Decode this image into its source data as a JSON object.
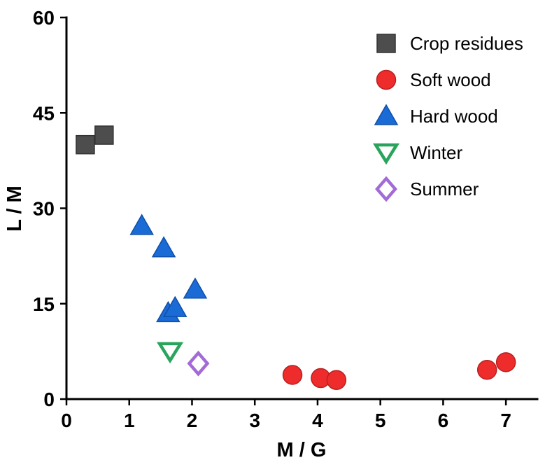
{
  "chart_data": {
    "type": "scatter",
    "title": "",
    "xlabel": "M / G",
    "ylabel": "L / M",
    "xlim": [
      0,
      7.5
    ],
    "ylim": [
      0,
      60
    ],
    "x_ticks": [
      0,
      1,
      2,
      3,
      4,
      5,
      6,
      7
    ],
    "y_ticks": [
      0,
      15,
      30,
      45,
      60
    ],
    "grid": false,
    "legend_position": "top-right",
    "series": [
      {
        "name": "Crop residues",
        "marker": "square",
        "fill": "#4d4d4d",
        "stroke": "#333333",
        "points": [
          [
            0.3,
            40.0
          ],
          [
            0.6,
            41.5
          ]
        ]
      },
      {
        "name": "Soft wood",
        "marker": "circle",
        "fill": "#ee2c2c",
        "stroke": "#b82020",
        "points": [
          [
            3.6,
            3.8
          ],
          [
            4.05,
            3.3
          ],
          [
            4.3,
            3.0
          ],
          [
            6.7,
            4.6
          ],
          [
            7.0,
            5.8
          ]
        ]
      },
      {
        "name": "Hard wood",
        "marker": "triangle-up",
        "fill": "#1a6bd6",
        "stroke": "#0f4fa8",
        "points": [
          [
            1.2,
            27.2
          ],
          [
            1.55,
            23.7
          ],
          [
            1.62,
            13.5
          ],
          [
            1.73,
            14.3
          ],
          [
            2.05,
            17.2
          ]
        ]
      },
      {
        "name": "Winter",
        "marker": "triangle-down-open",
        "fill": "none",
        "stroke": "#2aa45c",
        "points": [
          [
            1.65,
            7.5
          ]
        ]
      },
      {
        "name": "Summer",
        "marker": "diamond-open",
        "fill": "none",
        "stroke": "#a36bd6",
        "points": [
          [
            2.1,
            5.6
          ]
        ]
      }
    ]
  }
}
